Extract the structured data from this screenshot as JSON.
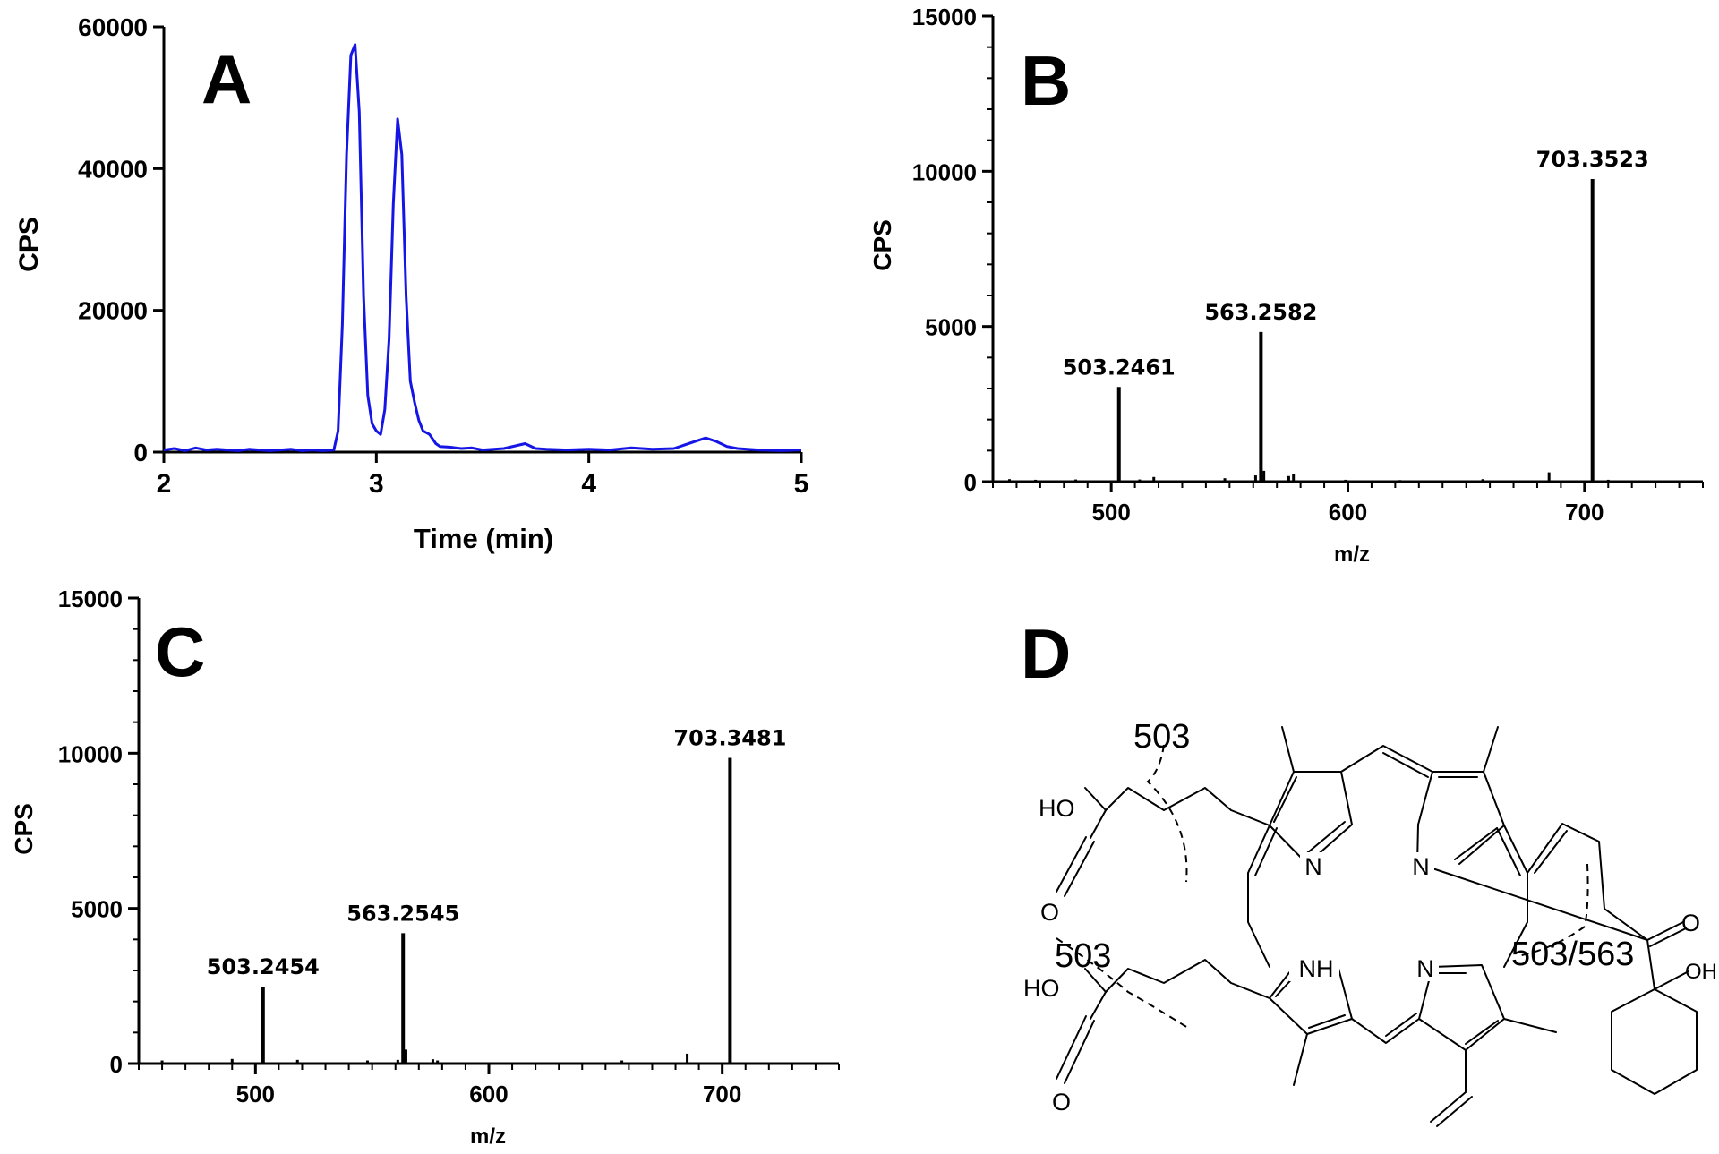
{
  "panels": {
    "A": {
      "letter": "A"
    },
    "B": {
      "letter": "B"
    },
    "C": {
      "letter": "C"
    },
    "D": {
      "letter": "D"
    }
  },
  "chart_data": [
    {
      "id": "A",
      "type": "line",
      "xlabel": "Time (min)",
      "ylabel": "CPS",
      "xlim": [
        2,
        5
      ],
      "ylim": [
        0,
        60000
      ],
      "xticks": [
        "2",
        "3",
        "4",
        "5"
      ],
      "yticks": [
        "0",
        "20000",
        "40000",
        "60000"
      ],
      "line_color": "#1515e6",
      "x": [
        2.0,
        2.05,
        2.1,
        2.15,
        2.2,
        2.25,
        2.3,
        2.35,
        2.4,
        2.45,
        2.5,
        2.55,
        2.6,
        2.65,
        2.7,
        2.75,
        2.8,
        2.82,
        2.84,
        2.86,
        2.88,
        2.9,
        2.92,
        2.94,
        2.96,
        2.98,
        3.0,
        3.02,
        3.04,
        3.06,
        3.08,
        3.1,
        3.12,
        3.14,
        3.16,
        3.18,
        3.2,
        3.22,
        3.25,
        3.28,
        3.3,
        3.35,
        3.4,
        3.45,
        3.5,
        3.6,
        3.7,
        3.75,
        3.8,
        3.9,
        4.0,
        4.1,
        4.2,
        4.3,
        4.4,
        4.5,
        4.55,
        4.6,
        4.65,
        4.7,
        4.8,
        4.9,
        5.0
      ],
      "y": [
        300,
        500,
        200,
        600,
        300,
        400,
        300,
        200,
        400,
        300,
        200,
        300,
        400,
        200,
        300,
        200,
        300,
        3000,
        18000,
        42000,
        56000,
        57500,
        48000,
        22000,
        8000,
        4000,
        3000,
        2500,
        6000,
        16000,
        35000,
        47000,
        42000,
        22000,
        10000,
        7000,
        4500,
        3000,
        2500,
        1200,
        800,
        700,
        500,
        600,
        300,
        500,
        1200,
        500,
        400,
        300,
        400,
        300,
        600,
        400,
        500,
        1500,
        2000,
        1500,
        800,
        500,
        300,
        200,
        300
      ]
    },
    {
      "id": "B",
      "type": "bar",
      "xlabel": "m/z",
      "ylabel": "CPS",
      "xlim": [
        450,
        750
      ],
      "ylim": [
        0,
        15000
      ],
      "xticks": [
        "500",
        "600",
        "700"
      ],
      "yticks": [
        "0",
        "5000",
        "10000",
        "15000"
      ],
      "peaks": [
        {
          "mz": 457,
          "cps": 80
        },
        {
          "mz": 468,
          "cps": 60
        },
        {
          "mz": 485,
          "cps": 70
        },
        {
          "mz": 503.2461,
          "cps": 3050,
          "label": "503.2461"
        },
        {
          "mz": 512,
          "cps": 70
        },
        {
          "mz": 518,
          "cps": 150
        },
        {
          "mz": 548,
          "cps": 110
        },
        {
          "mz": 561,
          "cps": 200
        },
        {
          "mz": 563.2582,
          "cps": 4820,
          "label": "563.2582"
        },
        {
          "mz": 564.5,
          "cps": 350
        },
        {
          "mz": 575,
          "cps": 180
        },
        {
          "mz": 577,
          "cps": 260
        },
        {
          "mz": 599,
          "cps": 60
        },
        {
          "mz": 622,
          "cps": 50
        },
        {
          "mz": 657,
          "cps": 80
        },
        {
          "mz": 685,
          "cps": 300
        },
        {
          "mz": 703.3523,
          "cps": 9750,
          "label": "703.3523"
        },
        {
          "mz": 710,
          "cps": 60
        }
      ]
    },
    {
      "id": "C",
      "type": "bar",
      "xlabel": "m/z",
      "ylabel": "CPS",
      "xlim": [
        450,
        750
      ],
      "ylim": [
        0,
        15000
      ],
      "xticks": [
        "500",
        "600",
        "700"
      ],
      "yticks": [
        "0",
        "5000",
        "10000",
        "15000"
      ],
      "peaks": [
        {
          "mz": 460,
          "cps": 100
        },
        {
          "mz": 490,
          "cps": 150
        },
        {
          "mz": 503.2454,
          "cps": 2480,
          "label": "503.2454"
        },
        {
          "mz": 518,
          "cps": 120
        },
        {
          "mz": 548,
          "cps": 100
        },
        {
          "mz": 561,
          "cps": 120
        },
        {
          "mz": 563.2545,
          "cps": 4200,
          "label": "563.2545"
        },
        {
          "mz": 564.5,
          "cps": 450
        },
        {
          "mz": 576,
          "cps": 140
        },
        {
          "mz": 578,
          "cps": 100
        },
        {
          "mz": 657,
          "cps": 100
        },
        {
          "mz": 685,
          "cps": 320
        },
        {
          "mz": 703.3481,
          "cps": 9850,
          "label": "703.3481"
        }
      ]
    }
  ],
  "structure": {
    "atoms": {
      "N1": "N",
      "N2": "N",
      "N3": "N",
      "NH": "NH",
      "HO1": "HO",
      "O1": "O",
      "HO2": "HO",
      "O2": "O",
      "O3": "O",
      "OH": "OH"
    },
    "fragments": {
      "f1": "503",
      "f2": "503",
      "f3": "503/563"
    }
  }
}
